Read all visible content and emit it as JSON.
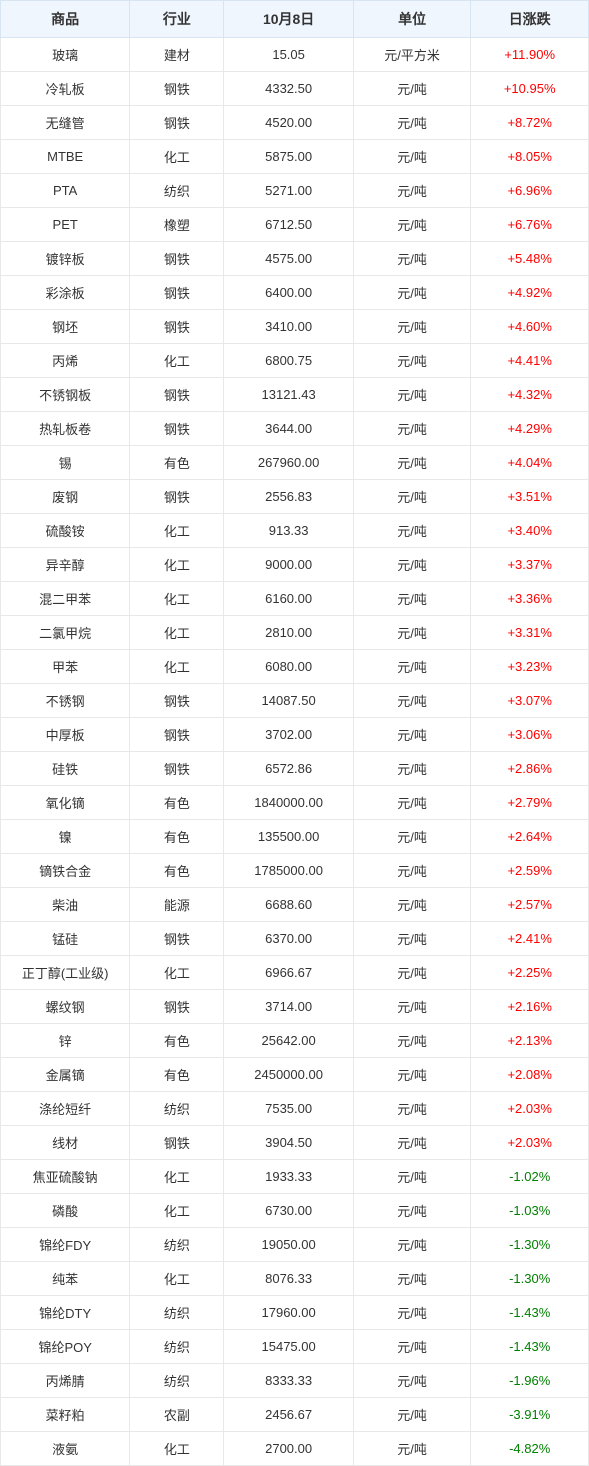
{
  "table": {
    "columns": [
      {
        "key": "product",
        "label": "商品",
        "class": "col-product"
      },
      {
        "key": "industry",
        "label": "行业",
        "class": "col-industry"
      },
      {
        "key": "price",
        "label": "10月8日",
        "class": "col-price"
      },
      {
        "key": "unit",
        "label": "单位",
        "class": "col-unit"
      },
      {
        "key": "change",
        "label": "日涨跌",
        "class": "col-change"
      }
    ],
    "rows": [
      {
        "product": "玻璃",
        "industry": "建材",
        "price": "15.05",
        "unit": "元/平方米",
        "change": "+11.90%",
        "changeType": "positive"
      },
      {
        "product": "冷轧板",
        "industry": "钢铁",
        "price": "4332.50",
        "unit": "元/吨",
        "change": "+10.95%",
        "changeType": "positive"
      },
      {
        "product": "无缝管",
        "industry": "钢铁",
        "price": "4520.00",
        "unit": "元/吨",
        "change": "+8.72%",
        "changeType": "positive"
      },
      {
        "product": "MTBE",
        "industry": "化工",
        "price": "5875.00",
        "unit": "元/吨",
        "change": "+8.05%",
        "changeType": "positive"
      },
      {
        "product": "PTA",
        "industry": "纺织",
        "price": "5271.00",
        "unit": "元/吨",
        "change": "+6.96%",
        "changeType": "positive"
      },
      {
        "product": "PET",
        "industry": "橡塑",
        "price": "6712.50",
        "unit": "元/吨",
        "change": "+6.76%",
        "changeType": "positive"
      },
      {
        "product": "镀锌板",
        "industry": "钢铁",
        "price": "4575.00",
        "unit": "元/吨",
        "change": "+5.48%",
        "changeType": "positive"
      },
      {
        "product": "彩涂板",
        "industry": "钢铁",
        "price": "6400.00",
        "unit": "元/吨",
        "change": "+4.92%",
        "changeType": "positive"
      },
      {
        "product": "钢坯",
        "industry": "钢铁",
        "price": "3410.00",
        "unit": "元/吨",
        "change": "+4.60%",
        "changeType": "positive"
      },
      {
        "product": "丙烯",
        "industry": "化工",
        "price": "6800.75",
        "unit": "元/吨",
        "change": "+4.41%",
        "changeType": "positive"
      },
      {
        "product": "不锈钢板",
        "industry": "钢铁",
        "price": "13121.43",
        "unit": "元/吨",
        "change": "+4.32%",
        "changeType": "positive"
      },
      {
        "product": "热轧板卷",
        "industry": "钢铁",
        "price": "3644.00",
        "unit": "元/吨",
        "change": "+4.29%",
        "changeType": "positive"
      },
      {
        "product": "锡",
        "industry": "有色",
        "price": "267960.00",
        "unit": "元/吨",
        "change": "+4.04%",
        "changeType": "positive"
      },
      {
        "product": "废钢",
        "industry": "钢铁",
        "price": "2556.83",
        "unit": "元/吨",
        "change": "+3.51%",
        "changeType": "positive"
      },
      {
        "product": "硫酸铵",
        "industry": "化工",
        "price": "913.33",
        "unit": "元/吨",
        "change": "+3.40%",
        "changeType": "positive"
      },
      {
        "product": "异辛醇",
        "industry": "化工",
        "price": "9000.00",
        "unit": "元/吨",
        "change": "+3.37%",
        "changeType": "positive"
      },
      {
        "product": "混二甲苯",
        "industry": "化工",
        "price": "6160.00",
        "unit": "元/吨",
        "change": "+3.36%",
        "changeType": "positive"
      },
      {
        "product": "二氯甲烷",
        "industry": "化工",
        "price": "2810.00",
        "unit": "元/吨",
        "change": "+3.31%",
        "changeType": "positive"
      },
      {
        "product": "甲苯",
        "industry": "化工",
        "price": "6080.00",
        "unit": "元/吨",
        "change": "+3.23%",
        "changeType": "positive"
      },
      {
        "product": "不锈钢",
        "industry": "钢铁",
        "price": "14087.50",
        "unit": "元/吨",
        "change": "+3.07%",
        "changeType": "positive"
      },
      {
        "product": "中厚板",
        "industry": "钢铁",
        "price": "3702.00",
        "unit": "元/吨",
        "change": "+3.06%",
        "changeType": "positive"
      },
      {
        "product": "硅铁",
        "industry": "钢铁",
        "price": "6572.86",
        "unit": "元/吨",
        "change": "+2.86%",
        "changeType": "positive"
      },
      {
        "product": "氧化镝",
        "industry": "有色",
        "price": "1840000.00",
        "unit": "元/吨",
        "change": "+2.79%",
        "changeType": "positive"
      },
      {
        "product": "镍",
        "industry": "有色",
        "price": "135500.00",
        "unit": "元/吨",
        "change": "+2.64%",
        "changeType": "positive"
      },
      {
        "product": "镝铁合金",
        "industry": "有色",
        "price": "1785000.00",
        "unit": "元/吨",
        "change": "+2.59%",
        "changeType": "positive"
      },
      {
        "product": "柴油",
        "industry": "能源",
        "price": "6688.60",
        "unit": "元/吨",
        "change": "+2.57%",
        "changeType": "positive"
      },
      {
        "product": "锰硅",
        "industry": "钢铁",
        "price": "6370.00",
        "unit": "元/吨",
        "change": "+2.41%",
        "changeType": "positive"
      },
      {
        "product": "正丁醇(工业级)",
        "industry": "化工",
        "price": "6966.67",
        "unit": "元/吨",
        "change": "+2.25%",
        "changeType": "positive"
      },
      {
        "product": "螺纹钢",
        "industry": "钢铁",
        "price": "3714.00",
        "unit": "元/吨",
        "change": "+2.16%",
        "changeType": "positive"
      },
      {
        "product": "锌",
        "industry": "有色",
        "price": "25642.00",
        "unit": "元/吨",
        "change": "+2.13%",
        "changeType": "positive"
      },
      {
        "product": "金属镝",
        "industry": "有色",
        "price": "2450000.00",
        "unit": "元/吨",
        "change": "+2.08%",
        "changeType": "positive"
      },
      {
        "product": "涤纶短纤",
        "industry": "纺织",
        "price": "7535.00",
        "unit": "元/吨",
        "change": "+2.03%",
        "changeType": "positive"
      },
      {
        "product": "线材",
        "industry": "钢铁",
        "price": "3904.50",
        "unit": "元/吨",
        "change": "+2.03%",
        "changeType": "positive"
      },
      {
        "product": "焦亚硫酸钠",
        "industry": "化工",
        "price": "1933.33",
        "unit": "元/吨",
        "change": "-1.02%",
        "changeType": "negative"
      },
      {
        "product": "磷酸",
        "industry": "化工",
        "price": "6730.00",
        "unit": "元/吨",
        "change": "-1.03%",
        "changeType": "negative"
      },
      {
        "product": "锦纶FDY",
        "industry": "纺织",
        "price": "19050.00",
        "unit": "元/吨",
        "change": "-1.30%",
        "changeType": "negative"
      },
      {
        "product": "纯苯",
        "industry": "化工",
        "price": "8076.33",
        "unit": "元/吨",
        "change": "-1.30%",
        "changeType": "negative"
      },
      {
        "product": "锦纶DTY",
        "industry": "纺织",
        "price": "17960.00",
        "unit": "元/吨",
        "change": "-1.43%",
        "changeType": "negative"
      },
      {
        "product": "锦纶POY",
        "industry": "纺织",
        "price": "15475.00",
        "unit": "元/吨",
        "change": "-1.43%",
        "changeType": "negative"
      },
      {
        "product": "丙烯腈",
        "industry": "纺织",
        "price": "8333.33",
        "unit": "元/吨",
        "change": "-1.96%",
        "changeType": "negative"
      },
      {
        "product": "菜籽粕",
        "industry": "农副",
        "price": "2456.67",
        "unit": "元/吨",
        "change": "-3.91%",
        "changeType": "negative"
      },
      {
        "product": "液氨",
        "industry": "化工",
        "price": "2700.00",
        "unit": "元/吨",
        "change": "-4.82%",
        "changeType": "negative"
      }
    ],
    "styling": {
      "header_bg": "#f0f6fd",
      "header_border": "#d8e4f0",
      "cell_border": "#e8e8e8",
      "text_color": "#333333",
      "positive_color": "#ff0000",
      "negative_color": "#008000",
      "font_size_header": 14,
      "font_size_cell": 13
    }
  }
}
